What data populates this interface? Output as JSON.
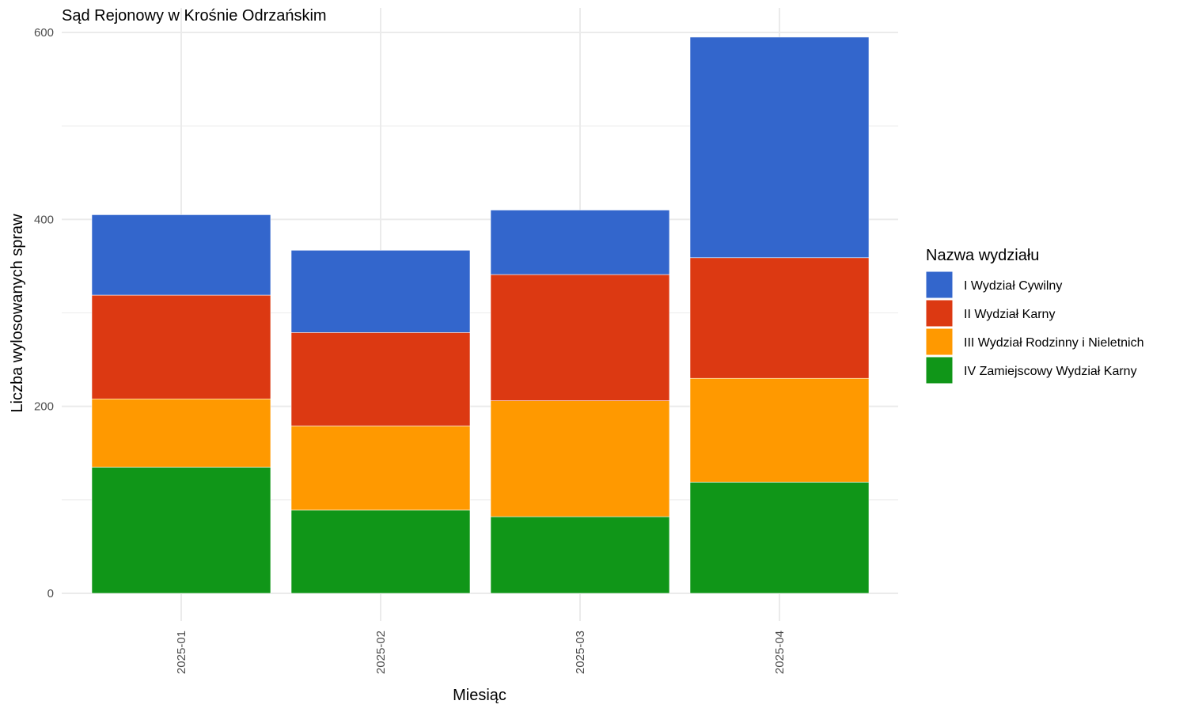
{
  "chart_data": {
    "type": "bar",
    "stacked": true,
    "title": "Sąd Rejonowy w Krośnie Odrzańskim",
    "xlabel": "Miesiąc",
    "ylabel": "Liczba wylosowanych spraw",
    "categories": [
      "2025-01",
      "2025-02",
      "2025-03",
      "2025-04"
    ],
    "ylim": [
      0,
      600
    ],
    "yticks": [
      0,
      200,
      400,
      600
    ],
    "grid": true,
    "legend": {
      "title": "Nazwa wydziału",
      "placement": "right"
    },
    "series": [
      {
        "name": "IV Zamiejscowy Wydział Karny",
        "color": "#109618",
        "values": [
          135,
          89,
          82,
          119
        ]
      },
      {
        "name": "III Wydział Rodzinny i Nieletnich",
        "color": "#FF9900",
        "values": [
          73,
          90,
          124,
          111
        ]
      },
      {
        "name": "II Wydział Karny",
        "color": "#DC3912",
        "values": [
          111,
          100,
          135,
          129
        ]
      },
      {
        "name": "I Wydział Cywilny",
        "color": "#3366CC",
        "values": [
          86,
          88,
          69,
          236
        ]
      }
    ],
    "legend_order": [
      "I Wydział Cywilny",
      "II Wydział Karny",
      "III Wydział Rodzinny i Nieletnich",
      "IV Zamiejscowy Wydział Karny"
    ]
  }
}
